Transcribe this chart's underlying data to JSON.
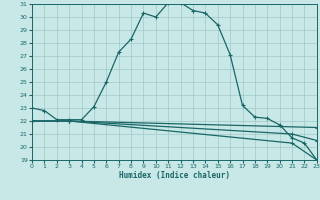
{
  "xlabel": "Humidex (Indice chaleur)",
  "bg_color": "#c8e8e8",
  "grid_color": "#a0c8c8",
  "line_color": "#1a6666",
  "xmin": 0,
  "xmax": 23,
  "ymin": 19,
  "ymax": 31,
  "xticks": [
    0,
    1,
    2,
    3,
    4,
    5,
    6,
    7,
    8,
    9,
    10,
    11,
    12,
    13,
    14,
    15,
    16,
    17,
    18,
    19,
    20,
    21,
    22,
    23
  ],
  "yticks": [
    19,
    20,
    21,
    22,
    23,
    24,
    25,
    26,
    27,
    28,
    29,
    30,
    31
  ],
  "curve1_x": [
    0,
    1,
    2,
    3,
    4,
    5,
    6,
    7,
    8,
    9,
    10,
    11,
    12,
    13,
    14,
    15,
    16,
    17,
    18,
    19,
    20,
    21,
    22,
    23
  ],
  "curve1_y": [
    23.0,
    22.8,
    22.1,
    22.1,
    22.1,
    23.1,
    25.0,
    27.3,
    28.3,
    30.3,
    30.0,
    31.1,
    31.1,
    30.5,
    30.3,
    29.4,
    27.1,
    23.2,
    22.3,
    22.2,
    21.7,
    20.7,
    20.3,
    19.0
  ],
  "curve2_x": [
    0,
    3,
    23
  ],
  "curve2_y": [
    22.0,
    22.0,
    21.5
  ],
  "curve3_x": [
    0,
    3,
    21,
    23
  ],
  "curve3_y": [
    22.0,
    22.0,
    21.0,
    20.5
  ],
  "curve4_x": [
    0,
    3,
    21,
    23
  ],
  "curve4_y": [
    22.0,
    22.0,
    20.3,
    19.0
  ]
}
